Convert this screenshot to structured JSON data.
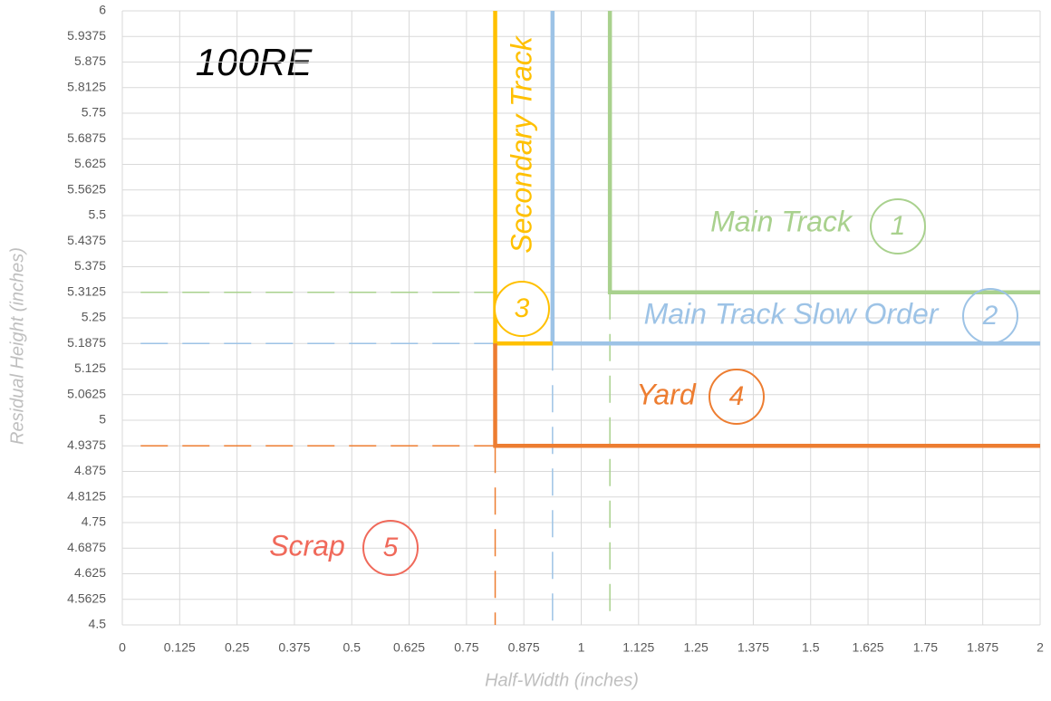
{
  "chart_data": {
    "type": "line",
    "title": "100RE",
    "x_label": "Half-Width (inches)",
    "y_label": "Residual Height (inches)",
    "xlim": [
      0,
      2
    ],
    "ylim": [
      4.5,
      6
    ],
    "xticks": [
      0,
      0.125,
      0.25,
      0.375,
      0.5,
      0.625,
      0.75,
      0.875,
      1,
      1.125,
      1.25,
      1.375,
      1.5,
      1.625,
      1.75,
      1.875,
      2
    ],
    "yticks": [
      4.5,
      4.5625,
      4.625,
      4.6875,
      4.75,
      4.8125,
      4.875,
      4.9375,
      5,
      5.0625,
      5.125,
      5.1875,
      5.25,
      5.3125,
      5.375,
      5.4375,
      5.5,
      5.5625,
      5.625,
      5.6875,
      5.75,
      5.8125,
      5.875,
      5.9375,
      6
    ],
    "grid": true,
    "series": [
      {
        "name": "Main Track",
        "zone": "1",
        "color": "#a9d18e",
        "x": [
          1.0625,
          1.0625,
          2
        ],
        "values": [
          6,
          5.3125,
          5.3125
        ],
        "guides": [
          {
            "x": [
              0.04,
              0.8125
            ],
            "values": [
              5.3125,
              5.3125
            ]
          },
          {
            "x": [
              1.0625,
              1.0625
            ],
            "values": [
              5.3125,
              4.5
            ]
          }
        ]
      },
      {
        "name": "Main Track Slow Order",
        "zone": "2",
        "color": "#9dc3e6",
        "x": [
          0.9375,
          0.9375,
          2
        ],
        "values": [
          6,
          5.1875,
          5.1875
        ],
        "guides": [
          {
            "x": [
              0.04,
              0.8125
            ],
            "values": [
              5.1875,
              5.1875
            ]
          },
          {
            "x": [
              0.9375,
              0.9375
            ],
            "values": [
              5.1875,
              4.5
            ]
          }
        ]
      },
      {
        "name": "Secondary Track",
        "zone": "3",
        "color": "#ffc000",
        "x": [
          0.8125,
          0.8125,
          0.9375
        ],
        "values": [
          6,
          5.1875,
          5.1875
        ]
      },
      {
        "name": "Yard",
        "zone": "4",
        "color": "#ed7d31",
        "x": [
          0.8125,
          0.8125,
          2
        ],
        "values": [
          5.1875,
          4.9375,
          4.9375
        ],
        "guides": [
          {
            "x": [
              0.04,
              0.8125
            ],
            "values": [
              4.9375,
              4.9375
            ]
          },
          {
            "x": [
              0.8125,
              0.8125
            ],
            "values": [
              4.9375,
              4.5
            ]
          }
        ]
      },
      {
        "name": "Scrap",
        "zone": "5",
        "color": "#f0695a"
      }
    ]
  }
}
